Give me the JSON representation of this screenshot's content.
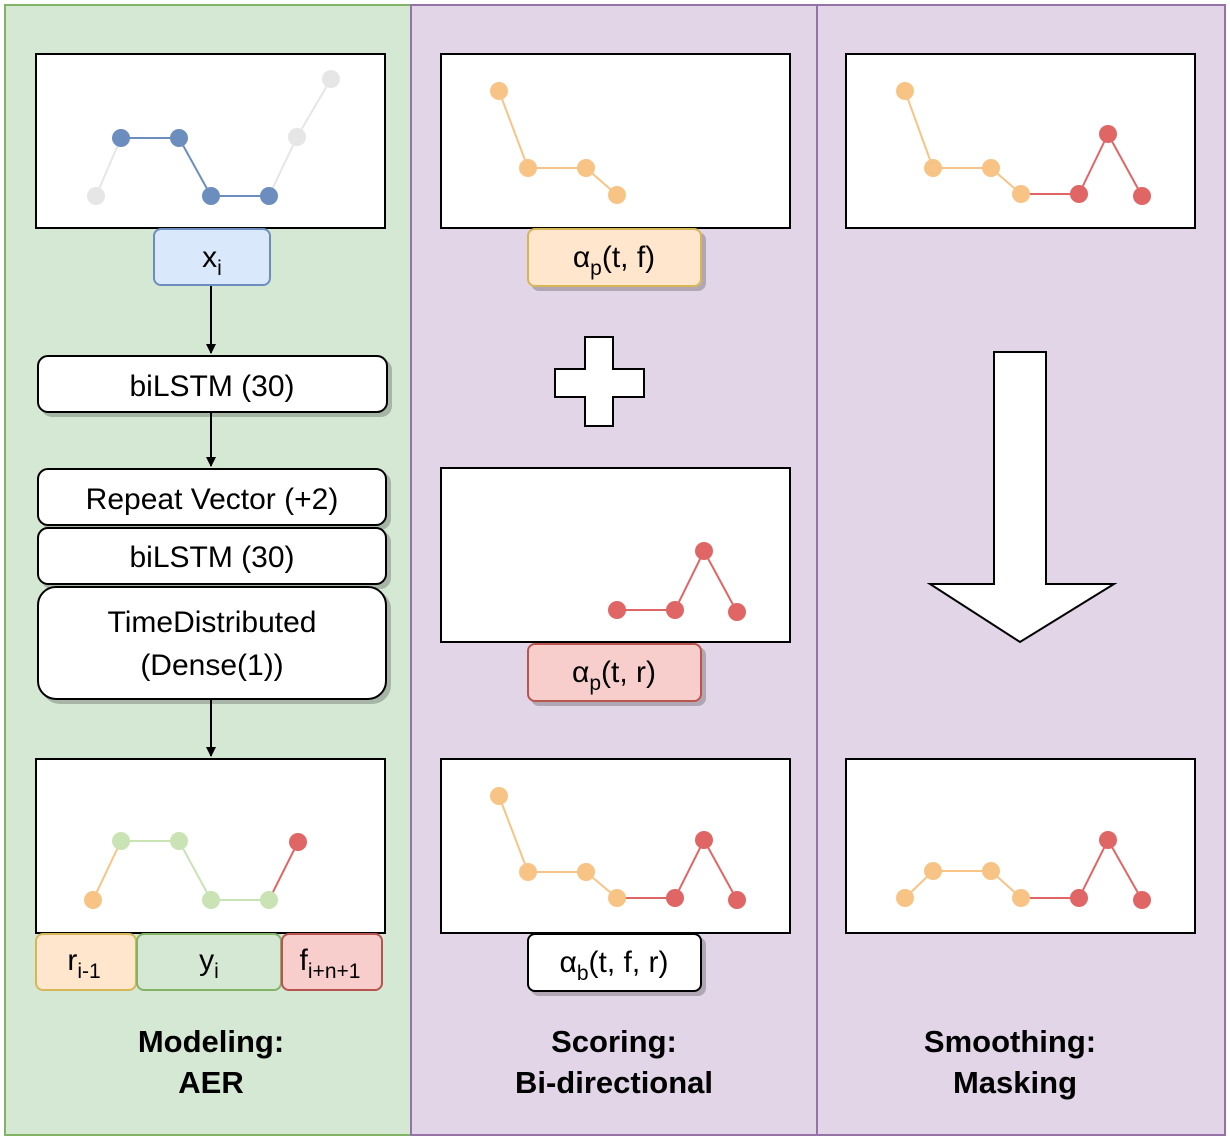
{
  "colors": {
    "panel_green_fill": "#d5e8d4",
    "panel_green_border": "#82b366",
    "panel_purple_fill": "#e1d5e7",
    "panel_purple_border": "#9673a6",
    "blue_series": "#6c8ebf",
    "gray_series": "#e6e6e6",
    "orange_series": "#f8c486",
    "green_series": "#c9e3b5",
    "red_series": "#e06666",
    "label_blue_fill": "#dae8fc",
    "label_orange_fill": "#ffe6cc",
    "label_green_fill": "#d5e8d4",
    "label_red_fill": "#f8cecc"
  },
  "modeling": {
    "title_line1": "Modeling:",
    "title_line2": "AER",
    "input_label": {
      "base": "x",
      "sub": "i"
    },
    "layers": {
      "bilstm1": "biLSTM (30)",
      "repeat": "Repeat Vector (+2)",
      "bilstm2": "biLSTM (30)",
      "timedist_line1": "TimeDistributed",
      "timedist_line2": "(Dense(1))"
    },
    "output_labels": {
      "reverse": {
        "base": "r",
        "sub": "i-1"
      },
      "recon": {
        "base": "y",
        "sub": "i"
      },
      "forward": {
        "base": "f",
        "sub": "i+n+1"
      }
    }
  },
  "scoring": {
    "title_line1": "Scoring:",
    "title_line2": "Bi-directional",
    "forward_label": {
      "base": "α",
      "sub": "p",
      "args": "(t, f)"
    },
    "reverse_label": {
      "base": "α",
      "sub": "p",
      "args": "(t, r)"
    },
    "bidir_label": {
      "base": "α",
      "sub": "b",
      "args": "(t, f, r)"
    },
    "plus_icon": "plus-icon"
  },
  "smoothing": {
    "title_line1": "Smoothing:",
    "title_line2": "Masking",
    "arrow_icon": "down-arrow-icon"
  }
}
